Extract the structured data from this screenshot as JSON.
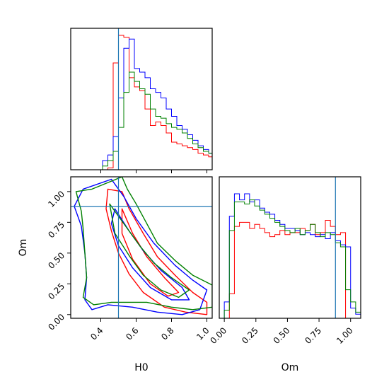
{
  "figure": {
    "type": "corner",
    "parameters": [
      "H0",
      "Om"
    ],
    "truth": {
      "H0": 0.5,
      "Om": 0.88
    },
    "colors": {
      "series": [
        "#ff0000",
        "#0000ff",
        "#008000"
      ],
      "truth_line": "#1f77b4"
    }
  },
  "chart_data": [
    {
      "type": "histogram",
      "panel": "H0 marginal",
      "x_range": [
        0.23,
        1.03
      ],
      "bin_edges": [
        0.23,
        0.26,
        0.29,
        0.32,
        0.35,
        0.38,
        0.41,
        0.44,
        0.47,
        0.5,
        0.53,
        0.56,
        0.59,
        0.62,
        0.65,
        0.68,
        0.71,
        0.74,
        0.77,
        0.8,
        0.83,
        0.86,
        0.89,
        0.92,
        0.95,
        0.98,
        1.01,
        1.03
      ],
      "series": [
        {
          "color": "#ff0000",
          "values": [
            0,
            0,
            0,
            0,
            0,
            0,
            0,
            0.01,
            0.58,
            0.73,
            0.72,
            0.5,
            0.45,
            0.43,
            0.33,
            0.24,
            0.26,
            0.24,
            0.2,
            0.15,
            0.14,
            0.13,
            0.12,
            0.11,
            0.09,
            0.08,
            0.07
          ]
        },
        {
          "color": "#0000ff",
          "values": [
            0,
            0,
            0,
            0,
            0,
            0,
            0.05,
            0.08,
            0.18,
            0.39,
            0.66,
            0.71,
            0.55,
            0.53,
            0.5,
            0.44,
            0.42,
            0.39,
            0.33,
            0.29,
            0.24,
            0.22,
            0.19,
            0.16,
            0.13,
            0.11,
            0.09
          ]
        },
        {
          "color": "#008000",
          "values": [
            0,
            0,
            0,
            0,
            0,
            0,
            0.02,
            0.05,
            0.1,
            0.23,
            0.42,
            0.53,
            0.48,
            0.44,
            0.41,
            0.33,
            0.29,
            0.28,
            0.25,
            0.23,
            0.22,
            0.2,
            0.17,
            0.14,
            0.12,
            0.1,
            0.09
          ]
        }
      ],
      "x_ticks": [
        0.4,
        0.6,
        0.8,
        1.0
      ]
    },
    {
      "type": "contour",
      "panel": "H0 vs Om",
      "xlabel": "H0",
      "ylabel": "Om",
      "x_range": [
        0.23,
        1.03
      ],
      "y_range": [
        -0.03,
        1.12
      ],
      "x_ticks": [
        "0.4",
        "0.6",
        "0.8",
        "1.0"
      ],
      "y_ticks": [
        "0.00",
        "0.25",
        "0.50",
        "0.75",
        "1.00"
      ],
      "series": [
        {
          "color": "#ff0000",
          "contours": [
            [
              [
                0.44,
                1.02
              ],
              [
                0.52,
                1.0
              ],
              [
                0.56,
                0.86
              ],
              [
                0.64,
                0.66
              ],
              [
                0.72,
                0.47
              ],
              [
                0.82,
                0.32
              ],
              [
                0.92,
                0.18
              ],
              [
                1.0,
                0.1
              ],
              [
                1.0,
                0.0
              ],
              [
                0.88,
                0.02
              ],
              [
                0.76,
                0.06
              ],
              [
                0.64,
                0.18
              ],
              [
                0.56,
                0.33
              ],
              [
                0.5,
                0.5
              ],
              [
                0.46,
                0.68
              ],
              [
                0.43,
                0.86
              ]
            ],
            [
              [
                0.52,
                0.86
              ],
              [
                0.58,
                0.66
              ],
              [
                0.66,
                0.47
              ],
              [
                0.76,
                0.3
              ],
              [
                0.84,
                0.18
              ],
              [
                0.78,
                0.15
              ],
              [
                0.68,
                0.25
              ],
              [
                0.58,
                0.45
              ],
              [
                0.52,
                0.66
              ]
            ]
          ]
        },
        {
          "color": "#0000ff",
          "contours": [
            [
              [
                0.3,
                1.02
              ],
              [
                0.46,
                1.1
              ],
              [
                0.53,
                0.96
              ],
              [
                0.6,
                0.78
              ],
              [
                0.7,
                0.58
              ],
              [
                0.82,
                0.4
              ],
              [
                0.92,
                0.28
              ],
              [
                1.0,
                0.2
              ],
              [
                0.96,
                0.04
              ],
              [
                0.86,
                0.0
              ],
              [
                0.72,
                0.02
              ],
              [
                0.58,
                0.06
              ],
              [
                0.44,
                0.08
              ],
              [
                0.35,
                0.04
              ],
              [
                0.31,
                0.12
              ],
              [
                0.32,
                0.3
              ],
              [
                0.31,
                0.5
              ],
              [
                0.29,
                0.72
              ],
              [
                0.25,
                0.88
              ]
            ],
            [
              [
                0.48,
                0.86
              ],
              [
                0.56,
                0.68
              ],
              [
                0.64,
                0.52
              ],
              [
                0.74,
                0.36
              ],
              [
                0.86,
                0.22
              ],
              [
                0.9,
                0.12
              ],
              [
                0.8,
                0.12
              ],
              [
                0.68,
                0.22
              ],
              [
                0.58,
                0.38
              ],
              [
                0.5,
                0.56
              ],
              [
                0.46,
                0.74
              ]
            ]
          ]
        },
        {
          "color": "#008000",
          "contours": [
            [
              [
                0.35,
                1.02
              ],
              [
                0.52,
                1.12
              ],
              [
                0.55,
                1.02
              ],
              [
                0.6,
                0.9
              ],
              [
                0.66,
                0.74
              ],
              [
                0.72,
                0.58
              ],
              [
                0.82,
                0.44
              ],
              [
                0.92,
                0.32
              ],
              [
                1.03,
                0.24
              ],
              [
                1.03,
                0.06
              ],
              [
                0.92,
                0.04
              ],
              [
                0.8,
                0.06
              ],
              [
                0.66,
                0.1
              ],
              [
                0.56,
                0.1
              ],
              [
                0.46,
                0.1
              ],
              [
                0.36,
                0.08
              ],
              [
                0.3,
                0.14
              ],
              [
                0.32,
                0.3
              ],
              [
                0.31,
                0.5
              ],
              [
                0.3,
                0.7
              ],
              [
                0.29,
                0.84
              ],
              [
                0.26,
                1.0
              ]
            ],
            [
              [
                0.45,
                0.9
              ],
              [
                0.54,
                0.72
              ],
              [
                0.62,
                0.56
              ],
              [
                0.7,
                0.42
              ],
              [
                0.8,
                0.3
              ],
              [
                0.9,
                0.2
              ],
              [
                0.84,
                0.14
              ],
              [
                0.74,
                0.2
              ],
              [
                0.64,
                0.32
              ],
              [
                0.56,
                0.48
              ],
              [
                0.48,
                0.66
              ]
            ]
          ]
        }
      ]
    },
    {
      "type": "histogram",
      "panel": "Om marginal",
      "xlabel": "Om",
      "x_range": [
        -0.04,
        1.08
      ],
      "bin_edges": [
        -0.04,
        0.0,
        0.04,
        0.08,
        0.12,
        0.16,
        0.2,
        0.24,
        0.28,
        0.32,
        0.36,
        0.4,
        0.44,
        0.48,
        0.52,
        0.56,
        0.6,
        0.64,
        0.68,
        0.72,
        0.76,
        0.8,
        0.84,
        0.88,
        0.92,
        0.96,
        1.0,
        1.04,
        1.08
      ],
      "x_ticks": [
        "0.00",
        "0.25",
        "0.50",
        "0.75",
        "1.00"
      ],
      "series": [
        {
          "color": "#ff0000",
          "values": [
            0,
            0,
            0.12,
            0.45,
            0.47,
            0.47,
            0.44,
            0.46,
            0.44,
            0.42,
            0.4,
            0.41,
            0.43,
            0.41,
            0.42,
            0.42,
            0.44,
            0.43,
            0.46,
            0.41,
            0.42,
            0.48,
            0.45,
            0.41,
            0.42,
            0,
            0,
            0
          ]
        },
        {
          "color": "#0000ff",
          "values": [
            0,
            0.08,
            0.5,
            0.61,
            0.58,
            0.61,
            0.57,
            0.58,
            0.54,
            0.52,
            0.51,
            0.48,
            0.46,
            0.44,
            0.44,
            0.43,
            0.41,
            0.42,
            0.41,
            0.4,
            0.41,
            0.39,
            0.42,
            0.38,
            0.36,
            0.35,
            0.05,
            0.02
          ]
        },
        {
          "color": "#008000",
          "values": [
            0,
            0.04,
            0.43,
            0.57,
            0.57,
            0.56,
            0.58,
            0.55,
            0.53,
            0.51,
            0.49,
            0.47,
            0.45,
            0.43,
            0.42,
            0.44,
            0.41,
            0.43,
            0.46,
            0.42,
            0.4,
            0.42,
            0.41,
            0.37,
            0.35,
            0.14,
            0.08,
            0.03
          ]
        }
      ]
    }
  ]
}
